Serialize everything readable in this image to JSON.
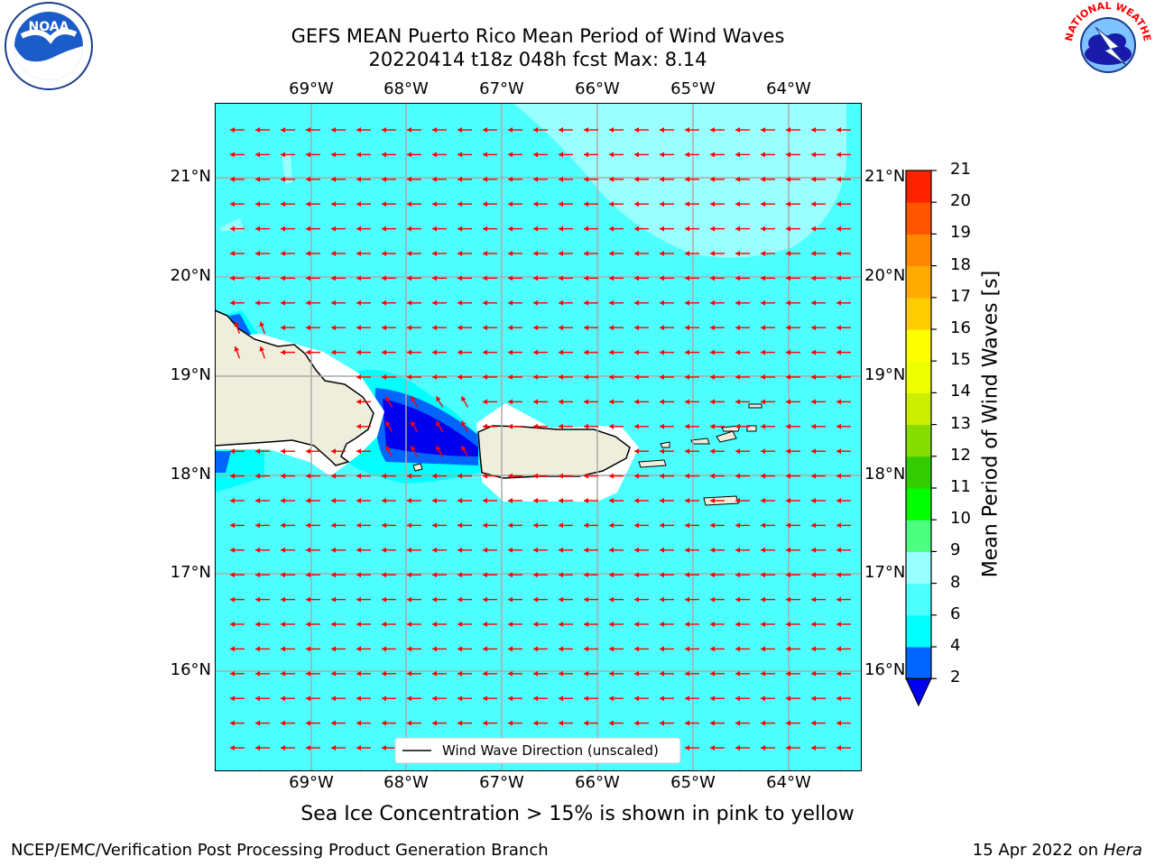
{
  "title": {
    "line1": "GEFS MEAN Puerto Rico Mean Period of Wind Waves",
    "line2": "20220414 t18z 048h fcst   Max: 8.14"
  },
  "map": {
    "lon_labels": [
      "69°W",
      "68°W",
      "67°W",
      "66°W",
      "65°W",
      "64°W"
    ],
    "lat_labels": [
      "21°N",
      "20°N",
      "19°N",
      "18°N",
      "17°N",
      "16°N"
    ],
    "legend_label": "Wind Wave Direction (unscaled)",
    "ocean_color": "#4dffff",
    "high_period_color": "#99ffff",
    "land_color": "#efeedc",
    "arrow_color": "#ff0000"
  },
  "colorbar": {
    "title": "Mean Period of Wind Waves [s]",
    "labels": [
      "2",
      "4",
      "6",
      "8",
      "9",
      "10",
      "11",
      "12",
      "13",
      "14",
      "15",
      "16",
      "17",
      "18",
      "19",
      "20",
      "21"
    ],
    "colors": [
      "#0066ff",
      "#00ffff",
      "#4dffff",
      "#99ffff",
      "#4dff80",
      "#00ff00",
      "#33cc00",
      "#88dd00",
      "#ccee00",
      "#eeff00",
      "#ffff00",
      "#ffcc00",
      "#ffaa00",
      "#ff8800",
      "#ff5500",
      "#ff2200"
    ],
    "under_color": "#0000ee"
  },
  "note": "Sea Ice Concentration > 15% is shown in pink to yellow",
  "footer": {
    "left": "NCEP/EMC/Verification Post Processing Product Generation Branch",
    "right_date": "15 Apr 2022 on ",
    "right_host": "Hera"
  },
  "logos": {
    "noaa_text": "NOAA",
    "nws_text": "NATIONAL WEATHER SERVICE"
  }
}
